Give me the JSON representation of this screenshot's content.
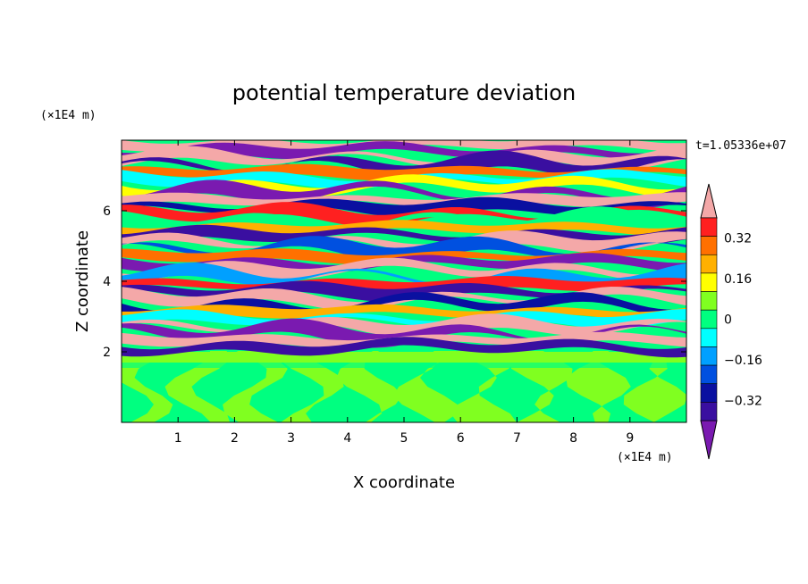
{
  "chart_data": {
    "type": "heatmap",
    "title": "potential temperature deviation",
    "xlabel": "X coordinate",
    "ylabel": "Z coordinate",
    "x_unit": "(×1E4 m)",
    "y_unit": "(×1E4 m)",
    "time_label": "t=1.05336e+07",
    "xlim": [
      0,
      10
    ],
    "ylim": [
      0,
      8
    ],
    "x_ticks": [
      1,
      2,
      3,
      4,
      5,
      6,
      7,
      8,
      9
    ],
    "y_ticks": [
      2,
      4,
      6
    ],
    "colorbar": {
      "levels": [
        -0.48,
        -0.4,
        -0.32,
        -0.24,
        -0.16,
        -0.08,
        0,
        0.08,
        0.16,
        0.24,
        0.32,
        0.4,
        0.48
      ],
      "tick_labels": [
        "0.32",
        "0.16",
        "0",
        "−0.16",
        "−0.32"
      ],
      "tick_values": [
        0.32,
        0.16,
        0,
        -0.16,
        -0.32
      ],
      "colors": [
        "#7a1ab0",
        "#3a0fa0",
        "#0a10a0",
        "#0050e0",
        "#00a0ff",
        "#00ffff",
        "#00ff80",
        "#80ff20",
        "#ffff00",
        "#ffb000",
        "#ff7000",
        "#ff2020",
        "#f4a8a8"
      ]
    },
    "layers": [
      {
        "z_range": [
          0,
          2.0
        ],
        "pattern": "near-zero values (0 to 0.08) with mixing eddies"
      },
      {
        "z_range": [
          2.0,
          8.0
        ],
        "pattern": "layered alternating positive (~0.48) and negative (~-0.48) bands"
      }
    ]
  }
}
